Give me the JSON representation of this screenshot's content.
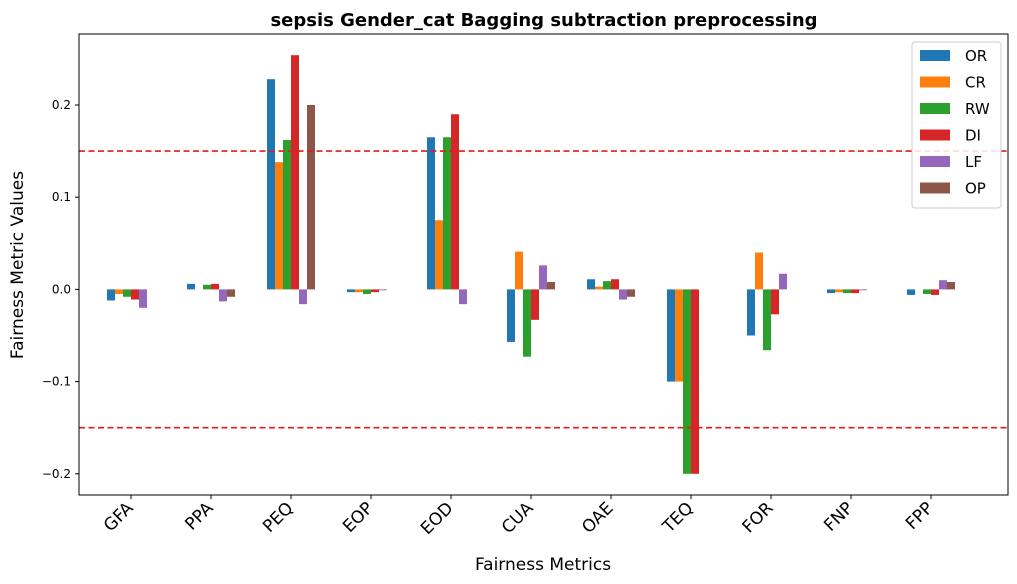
{
  "chart_data": {
    "type": "bar",
    "title": "sepsis Gender_cat Bagging subtraction preprocessing",
    "xlabel": "Fairness Metrics",
    "ylabel": "Fairness Metric Values",
    "ylim": [
      -0.223,
      0.277
    ],
    "yticks": [
      -0.2,
      -0.1,
      0.0,
      0.1,
      0.2
    ],
    "ytick_labels": [
      "−0.2",
      "−0.1",
      "0.0",
      "0.1",
      "0.2"
    ],
    "categories": [
      "GFA",
      "PPA",
      "PEQ",
      "EOP",
      "EOD",
      "CUA",
      "OAE",
      "TEQ",
      "FOR",
      "FNP",
      "FPP"
    ],
    "reference_lines": [
      0.15,
      -0.15
    ],
    "reference_line_color": "#e41a1c",
    "legend_position": "top-right",
    "grid": false,
    "series": [
      {
        "name": "OR",
        "color": "#1f77b4",
        "values": [
          -0.012,
          0.006,
          0.228,
          -0.003,
          0.165,
          -0.057,
          0.011,
          -0.1,
          -0.05,
          -0.004,
          -0.006
        ]
      },
      {
        "name": "CR",
        "color": "#ff7f0e",
        "values": [
          -0.005,
          0.0,
          0.138,
          -0.003,
          0.075,
          0.041,
          0.003,
          -0.1,
          0.04,
          -0.003,
          0.0
        ]
      },
      {
        "name": "RW",
        "color": "#2ca02c",
        "values": [
          -0.008,
          0.005,
          0.162,
          -0.005,
          0.165,
          -0.073,
          0.009,
          -0.2,
          -0.066,
          -0.004,
          -0.005
        ]
      },
      {
        "name": "DI",
        "color": "#d62728",
        "values": [
          -0.011,
          0.006,
          0.254,
          -0.003,
          0.19,
          -0.033,
          0.011,
          -0.2,
          -0.027,
          -0.004,
          -0.006
        ]
      },
      {
        "name": "LF",
        "color": "#9467bd",
        "values": [
          -0.02,
          -0.013,
          -0.016,
          -0.001,
          -0.016,
          0.026,
          -0.011,
          0.0,
          0.017,
          -0.001,
          0.01
        ]
      },
      {
        "name": "OP",
        "color": "#8c564b",
        "values": [
          0.0,
          -0.008,
          0.2,
          0.0,
          0.0,
          0.008,
          -0.008,
          0.0,
          0.0,
          0.0,
          0.008
        ]
      }
    ]
  }
}
